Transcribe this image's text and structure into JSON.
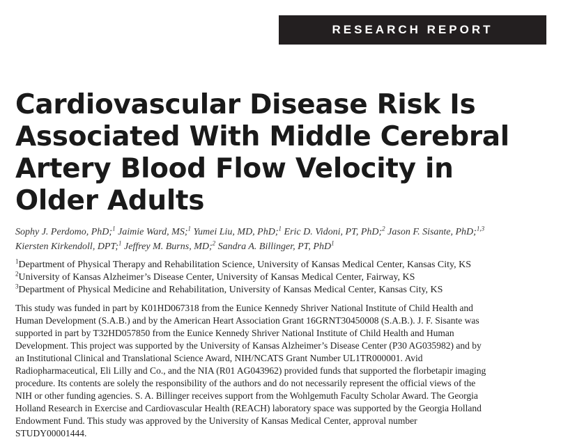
{
  "banner": {
    "label": "RESEARCH REPORT"
  },
  "title": {
    "lines": [
      "Cardiovascular Disease Risk Is",
      "Associated With Middle Cerebral",
      "Artery Blood Flow Velocity in",
      "Older Adults"
    ]
  },
  "authors": [
    {
      "name": "Sophy J. Perdomo, PhD;",
      "sup": "1"
    },
    {
      "name": "Jaimie Ward, MS;",
      "sup": "1"
    },
    {
      "name": "Yumei Liu, MD, PhD;",
      "sup": "1"
    },
    {
      "name": "Eric D. Vidoni, PT, PhD;",
      "sup": "2"
    },
    {
      "name": "Jason F. Sisante, PhD;",
      "sup": "1,3"
    },
    {
      "name": "Kiersten Kirkendoll, DPT;",
      "sup": "1"
    },
    {
      "name": "Jeffrey M. Burns, MD;",
      "sup": "2"
    },
    {
      "name": "Sandra A. Billinger, PT, PhD",
      "sup": "1"
    }
  ],
  "affiliations": [
    {
      "sup": "1",
      "text": "Department of Physical Therapy and Rehabilitation Science, University of Kansas Medical Center, Kansas City, KS"
    },
    {
      "sup": "2",
      "text": "University of Kansas Alzheimer’s Disease Center, University of Kansas Medical Center, Fairway, KS"
    },
    {
      "sup": "3",
      "text": "Department of Physical Medicine and Rehabilitation, University of Kansas Medical Center, Kansas City, KS"
    }
  ],
  "funding": {
    "lines": [
      "This study was funded in part by K01HD067318 from the Eunice Kennedy Shriver National Institute of Child Health and",
      "Human Development (S.A.B.) and by the American Heart Association Grant 16GRNT30450008 (S.A.B.). J. F. Sisante was",
      "supported in part by T32HD057850 from the Eunice Kennedy Shriver National Institute of Child Health and Human",
      "Development. This project was supported by the University of Kansas Alzheimer’s Disease Center (P30 AG035982) and by",
      "an Institutional Clinical and Translational Science Award, NIH/NCATS Grant Number UL1TR000001. Avid",
      "Radiopharmaceutical, Eli Lilly and Co., and the NIA (R01 AG043962) provided funds that supported the florbetapir imaging",
      "procedure. Its contents are solely the responsibility of the authors and do not necessarily represent the official views of the",
      "NIH or other funding agencies. S. A. Billinger receives support from the Wohlgemuth Faculty Scholar Award. The Georgia",
      "Holland Research in Exercise and Cardiovascular Health (REACH) laboratory space was supported by the Georgia Holland",
      "Endowment Fund. This study was approved by the University of Kansas Medical Center, approval number",
      "STUDY00001444."
    ]
  }
}
